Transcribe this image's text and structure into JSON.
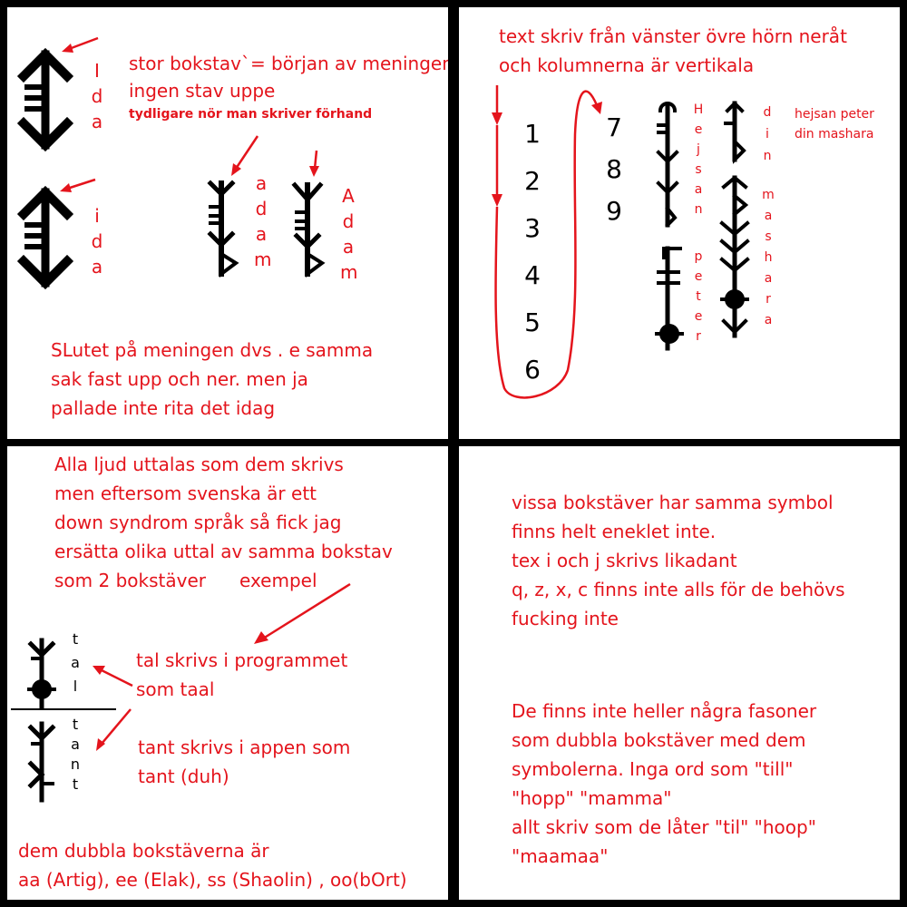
{
  "panel1": {
    "note_capital_1": "stor bokstav`= början av meningen",
    "note_capital_2": "ingen stav uppe",
    "note_capital_3": "tydligare nör man skriver förhand",
    "word_ida_capital": [
      "I",
      "d",
      "a"
    ],
    "word_ida_lower": [
      "i",
      "d",
      "a"
    ],
    "word_adam_lower": [
      "a",
      "d",
      "a",
      "m"
    ],
    "word_adam_capital": [
      "A",
      "d",
      "a",
      "m"
    ],
    "ending_1": "SLutet på meningen dvs . e samma",
    "ending_2": "sak fast upp och ner. men ja",
    "ending_3": "pallade inte rita det idag"
  },
  "panel2": {
    "direction_1": "text skriv från vänster övre hörn neråt",
    "direction_2": "och kolumnerna är vertikala",
    "numbers_col1": [
      "1",
      "2",
      "3",
      "4",
      "5",
      "6"
    ],
    "numbers_col2": [
      "7",
      "8",
      "9"
    ],
    "word_hejsan": [
      "H",
      "e",
      "j",
      "s",
      "a",
      "n"
    ],
    "word_peter": [
      "p",
      "e",
      "t",
      "e",
      "r"
    ],
    "word_din": [
      "d",
      "i",
      "n"
    ],
    "word_mashara": [
      "m",
      "a",
      "s",
      "h",
      "a",
      "r",
      "a"
    ],
    "translation_1": "hejsan peter",
    "translation_2": "din mashara"
  },
  "panel3": {
    "intro_1": "Alla ljud uttalas som dem skrivs",
    "intro_2": "men eftersom svenska är ett",
    "intro_3": "down syndrom språk så fick jag",
    "intro_4": "ersätta olika uttal av samma bokstav",
    "intro_5": "som 2 bokstäver",
    "intro_example": "exempel",
    "word_tal": [
      "t",
      "a",
      "l"
    ],
    "word_tant": [
      "t",
      "a",
      "n",
      "t"
    ],
    "tal_note_1": "tal skrivs i programmet",
    "tal_note_2": "som taal",
    "tant_note_1": "tant skrivs i appen som",
    "tant_note_2": "tant (duh)",
    "double_1": "dem dubbla bokstäverna är",
    "double_2": "aa (Artig), ee (Elak), ss (Shaolin) , oo(bOrt)"
  },
  "panel4": {
    "same_1": "vissa bokstäver har samma symbol",
    "same_2": "finns helt eneklet inte.",
    "same_3": "tex i och j skrivs likadant",
    "same_4": "q, z, x, c finns inte alls för de behövs",
    "same_5": "fucking inte",
    "none_1": "De finns inte heller några fasoner",
    "none_2": "som dubbla bokstäver med dem",
    "none_3": "symbolerna. Inga ord som \"till\"",
    "none_4": "\"hopp\" \"mamma\"",
    "none_5": "allt skriv som de låter \"til\" \"hoop\"",
    "none_6": "\"maamaa\""
  },
  "colors": {
    "annotation": "#e4141c",
    "glyph": "#000000",
    "background": "#ffffff",
    "border": "#000000"
  }
}
